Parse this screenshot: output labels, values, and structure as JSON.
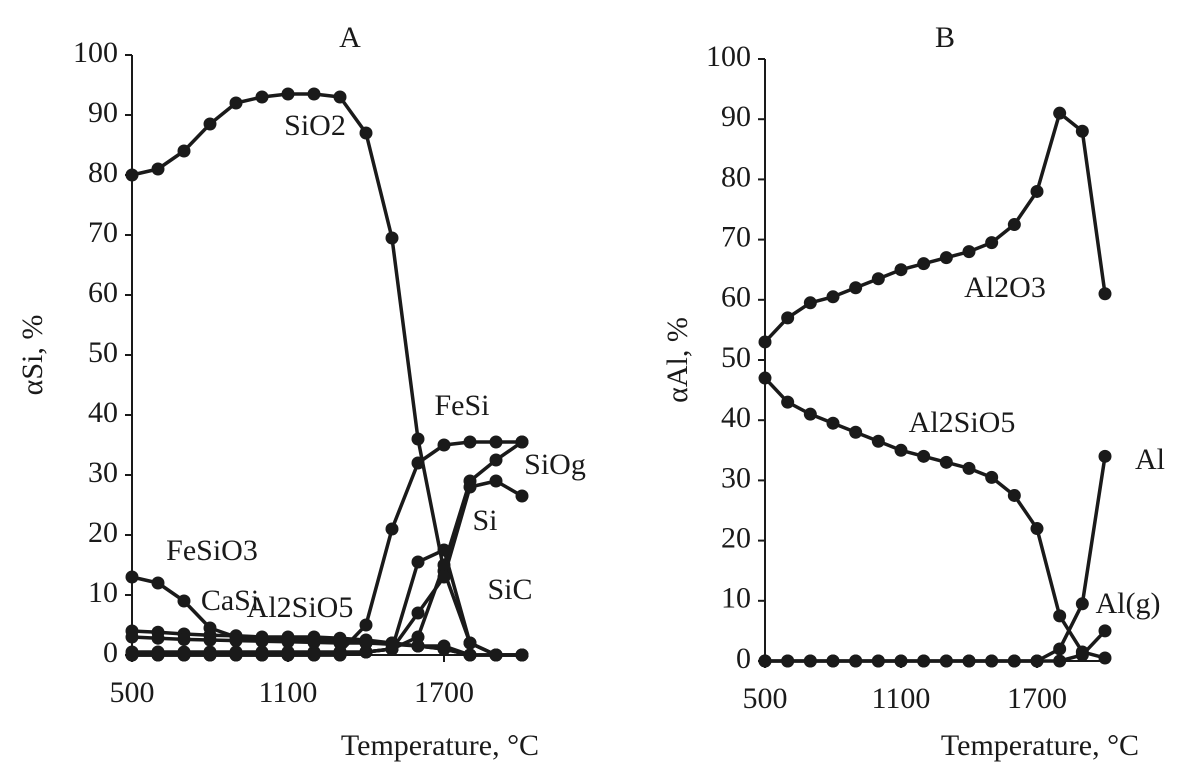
{
  "chart_data": [
    {
      "type": "line",
      "title": "A",
      "x_label": "Temperature, °C",
      "y_label": "αSi, %",
      "x": [
        500,
        600,
        700,
        800,
        900,
        1000,
        1100,
        1200,
        1300,
        1400,
        1500,
        1600,
        1700,
        1800,
        1900,
        2000
      ],
      "xlim": [
        500,
        2000
      ],
      "xticks": [
        500,
        1100,
        1700
      ],
      "ylim": [
        0,
        100
      ],
      "yticks": [
        0,
        10,
        20,
        30,
        40,
        50,
        60,
        70,
        80,
        90,
        100
      ],
      "series": [
        {
          "name": "SiO2",
          "color": "#1a1a1a",
          "values": [
            80,
            81,
            84,
            88.5,
            92,
            93,
            93.5,
            93.5,
            93,
            87,
            69.5,
            36,
            14,
            2,
            0,
            0
          ]
        },
        {
          "name": "FeSi",
          "color": "#1a1a1a",
          "values": [
            0,
            0,
            0,
            0,
            0,
            0,
            0,
            0,
            0.5,
            5,
            21,
            32,
            35,
            35.5,
            35.5,
            35.5
          ]
        },
        {
          "name": "SiOg",
          "color": "#1a1a1a",
          "values": [
            0,
            0,
            0,
            0,
            0,
            0,
            0,
            0,
            0,
            0.5,
            1,
            3,
            15,
            29,
            32.5,
            35.5
          ]
        },
        {
          "name": "Si",
          "color": "#1a1a1a",
          "values": [
            0,
            0,
            0,
            0,
            0,
            0,
            0,
            0,
            0,
            0.5,
            1,
            7,
            13,
            28,
            29,
            26.5
          ]
        },
        {
          "name": "SiC",
          "color": "#1a1a1a",
          "values": [
            0.5,
            0.5,
            0.5,
            0.5,
            0.5,
            0.5,
            0.5,
            0.5,
            0.5,
            0.5,
            1,
            15.5,
            17.5,
            2,
            0,
            0
          ]
        },
        {
          "name": "FeSiO3",
          "color": "#1a1a1a",
          "values": [
            13,
            12,
            9,
            4.5,
            3,
            2.5,
            2.5,
            2.5,
            2.5,
            2,
            2,
            1.5,
            1.5,
            0,
            0,
            0
          ]
        },
        {
          "name": "CaSi",
          "color": "#1a1a1a",
          "values": [
            4,
            3.8,
            3.5,
            3.3,
            3.2,
            3,
            3,
            3,
            2.8,
            2.5,
            2,
            1.5,
            1,
            0,
            0,
            0
          ]
        },
        {
          "name": "Al2SiO5",
          "color": "#1a1a1a",
          "values": [
            3,
            2.8,
            2.6,
            2.5,
            2.4,
            2.3,
            2.2,
            2.1,
            2,
            2,
            1.8,
            1.5,
            1,
            0,
            0,
            0
          ]
        }
      ]
    },
    {
      "type": "line",
      "title": "B",
      "x_label": "Temperature, °C",
      "y_label": "αAl, %",
      "x": [
        500,
        600,
        700,
        800,
        900,
        1000,
        1100,
        1200,
        1300,
        1400,
        1500,
        1600,
        1700,
        1800,
        1900,
        2000
      ],
      "xlim": [
        500,
        2000
      ],
      "xticks": [
        500,
        1100,
        1700
      ],
      "ylim": [
        0,
        100
      ],
      "yticks": [
        0,
        10,
        20,
        30,
        40,
        50,
        60,
        70,
        80,
        90,
        100
      ],
      "series": [
        {
          "name": "Al2O3",
          "color": "#1a1a1a",
          "values": [
            53,
            57,
            59.5,
            60.5,
            62,
            63.5,
            65,
            66,
            67,
            68,
            69.5,
            72.5,
            78,
            91,
            88,
            61
          ]
        },
        {
          "name": "Al2SiO5",
          "color": "#1a1a1a",
          "values": [
            47,
            43,
            41,
            39.5,
            38,
            36.5,
            35,
            34,
            33,
            32,
            30.5,
            27.5,
            22,
            7.5,
            1.5,
            0.5
          ]
        },
        {
          "name": "Al",
          "color": "#1a1a1a",
          "values": [
            0,
            0,
            0,
            0,
            0,
            0,
            0,
            0,
            0,
            0,
            0,
            0,
            0,
            2,
            9.5,
            34
          ]
        },
        {
          "name": "Al(g)",
          "color": "#1a1a1a",
          "values": [
            0,
            0,
            0,
            0,
            0,
            0,
            0,
            0,
            0,
            0,
            0,
            0,
            0,
            0,
            1,
            5
          ]
        }
      ]
    }
  ]
}
